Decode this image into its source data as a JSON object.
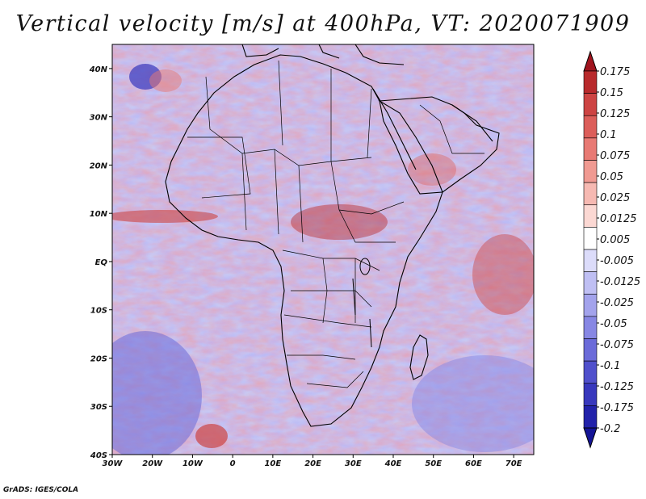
{
  "title": "Vertical velocity [m/s] at 400hPa, VT: 2020071909",
  "footer": "GrADS: IGES/COLA",
  "map": {
    "lon_range": [
      -30,
      75
    ],
    "lat_range": [
      -40,
      45
    ],
    "x_ticks": [
      {
        "lon": -30,
        "label": "30W"
      },
      {
        "lon": -20,
        "label": "20W"
      },
      {
        "lon": -10,
        "label": "10W"
      },
      {
        "lon": 0,
        "label": "0"
      },
      {
        "lon": 10,
        "label": "10E"
      },
      {
        "lon": 20,
        "label": "20E"
      },
      {
        "lon": 30,
        "label": "30E"
      },
      {
        "lon": 40,
        "label": "40E"
      },
      {
        "lon": 50,
        "label": "50E"
      },
      {
        "lon": 60,
        "label": "60E"
      },
      {
        "lon": 70,
        "label": "70E"
      }
    ],
    "y_ticks": [
      {
        "lat": 40,
        "label": "40N"
      },
      {
        "lat": 30,
        "label": "30N"
      },
      {
        "lat": 20,
        "label": "20N"
      },
      {
        "lat": 10,
        "label": "10N"
      },
      {
        "lat": 0,
        "label": "EQ"
      },
      {
        "lat": -10,
        "label": "10S"
      },
      {
        "lat": -20,
        "label": "20S"
      },
      {
        "lat": -30,
        "label": "30S"
      },
      {
        "lat": -40,
        "label": "40S"
      }
    ]
  },
  "colorbar": {
    "labels": [
      "0.175",
      "0.15",
      "0.125",
      "0.1",
      "0.075",
      "0.05",
      "0.025",
      "0.0125",
      "0.005",
      "-0.005",
      "-0.0125",
      "-0.025",
      "-0.05",
      "-0.075",
      "-0.1",
      "-0.125",
      "-0.175",
      "-0.2"
    ],
    "colors": [
      "#a0141e",
      "#b82a2c",
      "#cd4443",
      "#dc5e5a",
      "#e87a74",
      "#f09a92",
      "#f6b9b2",
      "#fbd8d3",
      "#ffffff",
      "#dcdcfa",
      "#bfbff3",
      "#a3a3ec",
      "#8787e4",
      "#6b6bd9",
      "#5050cc",
      "#3838bd",
      "#2222aa",
      "#141496"
    ]
  }
}
